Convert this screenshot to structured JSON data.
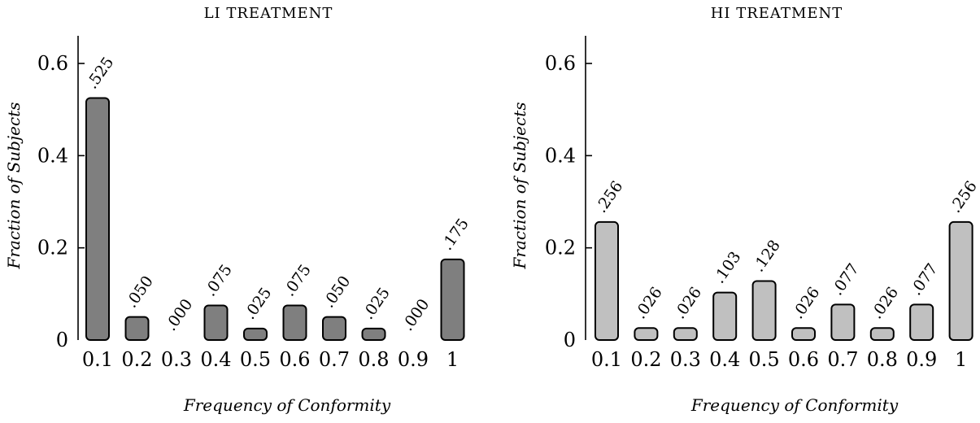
{
  "chart_data": [
    {
      "type": "bar",
      "title": "LI TREATMENT",
      "xlabel": "Frequency of Conformity",
      "ylabel": "Fraction of Subjects",
      "categories": [
        "0.1",
        "0.2",
        "0.3",
        "0.4",
        "0.5",
        "0.6",
        "0.7",
        "0.8",
        "0.9",
        "1"
      ],
      "values": [
        0.525,
        0.05,
        0.0,
        0.075,
        0.025,
        0.075,
        0.05,
        0.025,
        0.0,
        0.175
      ],
      "data_labels": [
        ".525",
        ".050",
        ".000",
        ".075",
        ".025",
        ".075",
        ".050",
        ".025",
        ".000",
        ".175"
      ],
      "ylim": [
        0,
        0.65
      ],
      "yticks": [
        "0",
        "0.2",
        "0.4",
        "0.6"
      ],
      "ytick_values": [
        0,
        0.2,
        0.4,
        0.6
      ],
      "bar_color": "#7f7f7f",
      "grid": false,
      "legend": "none"
    },
    {
      "type": "bar",
      "title": "HI TREATMENT",
      "xlabel": "Frequency of Conformity",
      "ylabel": "Fraction of Subjects",
      "categories": [
        "0.1",
        "0.2",
        "0.3",
        "0.4",
        "0.5",
        "0.6",
        "0.7",
        "0.8",
        "0.9",
        "1"
      ],
      "values": [
        0.256,
        0.026,
        0.026,
        0.103,
        0.128,
        0.026,
        0.077,
        0.026,
        0.077,
        0.256
      ],
      "data_labels": [
        ".256",
        ".026",
        ".026",
        ".103",
        ".128",
        ".026",
        ".077",
        ".026",
        ".077",
        ".256"
      ],
      "ylim": [
        0,
        0.65
      ],
      "yticks": [
        "0",
        "0.2",
        "0.4",
        "0.6"
      ],
      "ytick_values": [
        0,
        0.2,
        0.4,
        0.6
      ],
      "bar_color": "#c0c0c0",
      "grid": false,
      "legend": "none"
    }
  ]
}
